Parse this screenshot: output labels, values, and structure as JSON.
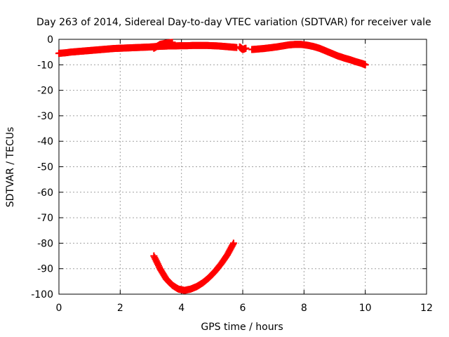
{
  "chart_data": {
    "type": "scatter",
    "title": "Day 263 of 2014, Sidereal Day-to-day VTEC variation (SDTVAR) for receiver vale",
    "xlabel": "GPS time / hours",
    "ylabel": "SDTVAR / TECUs",
    "xlim": [
      0,
      12
    ],
    "ylim": [
      -100,
      0
    ],
    "x_ticks": [
      0,
      2,
      4,
      6,
      8,
      10,
      12
    ],
    "y_ticks": [
      0,
      -10,
      -20,
      -30,
      -40,
      -50,
      -60,
      -70,
      -80,
      -90,
      -100
    ],
    "x_tick_labels": [
      "0",
      "2",
      "4",
      "6",
      "8",
      "10",
      "12"
    ],
    "y_tick_labels": [
      "0",
      "-10",
      "-20",
      "-30",
      "-40",
      "-50",
      "-60",
      "-70",
      "-80",
      "-90",
      "-100"
    ],
    "grid": true,
    "legend": "none",
    "marker": "plus",
    "color": "#ff0000",
    "series": [
      {
        "x": [
          0.0,
          0.2,
          0.4,
          0.6,
          0.8,
          1.0,
          1.2,
          1.4,
          1.6,
          1.8,
          2.0,
          2.2,
          2.4,
          2.6,
          2.8,
          3.0,
          3.2,
          3.4,
          3.6,
          3.8,
          4.0,
          4.2,
          4.4,
          4.6,
          4.8,
          5.0,
          5.2,
          5.4,
          5.6,
          5.8
        ],
        "y": [
          -5.5,
          -5.3,
          -5.0,
          -4.8,
          -4.6,
          -4.4,
          -4.2,
          -4.0,
          -3.8,
          -3.6,
          -3.5,
          -3.4,
          -3.3,
          -3.2,
          -3.1,
          -3.0,
          -2.8,
          -2.7,
          -2.6,
          -2.6,
          -2.5,
          -2.5,
          -2.4,
          -2.4,
          -2.4,
          -2.5,
          -2.6,
          -2.8,
          -3.0,
          -3.2
        ]
      },
      {
        "x": [
          3.1,
          3.3,
          3.5,
          3.7
        ],
        "y": [
          -3.5,
          -2.0,
          -1.5,
          -1.2
        ]
      },
      {
        "x": [
          5.9,
          6.0,
          6.1
        ],
        "y": [
          -3.0,
          -4.0,
          -3.5
        ]
      },
      {
        "x": [
          6.3,
          6.5,
          6.7,
          6.9,
          7.1,
          7.3,
          7.5,
          7.7,
          7.9,
          8.1,
          8.3,
          8.5,
          8.7,
          8.9,
          9.1,
          9.3,
          9.5,
          9.7,
          9.9,
          10.0
        ],
        "y": [
          -4.0,
          -3.8,
          -3.6,
          -3.3,
          -3.0,
          -2.6,
          -2.2,
          -2.0,
          -2.0,
          -2.3,
          -2.8,
          -3.5,
          -4.5,
          -5.5,
          -6.5,
          -7.3,
          -8.0,
          -8.8,
          -9.5,
          -10.0
        ]
      },
      {
        "x": [
          3.1,
          3.3,
          3.5,
          3.7,
          3.9,
          4.1,
          4.3,
          4.5,
          4.7,
          4.9,
          5.1,
          5.3,
          5.5,
          5.7
        ],
        "y": [
          -85.0,
          -90.0,
          -94.0,
          -96.5,
          -98.0,
          -98.5,
          -98.0,
          -97.0,
          -95.5,
          -93.5,
          -91.0,
          -88.0,
          -84.5,
          -80.0
        ]
      }
    ]
  }
}
